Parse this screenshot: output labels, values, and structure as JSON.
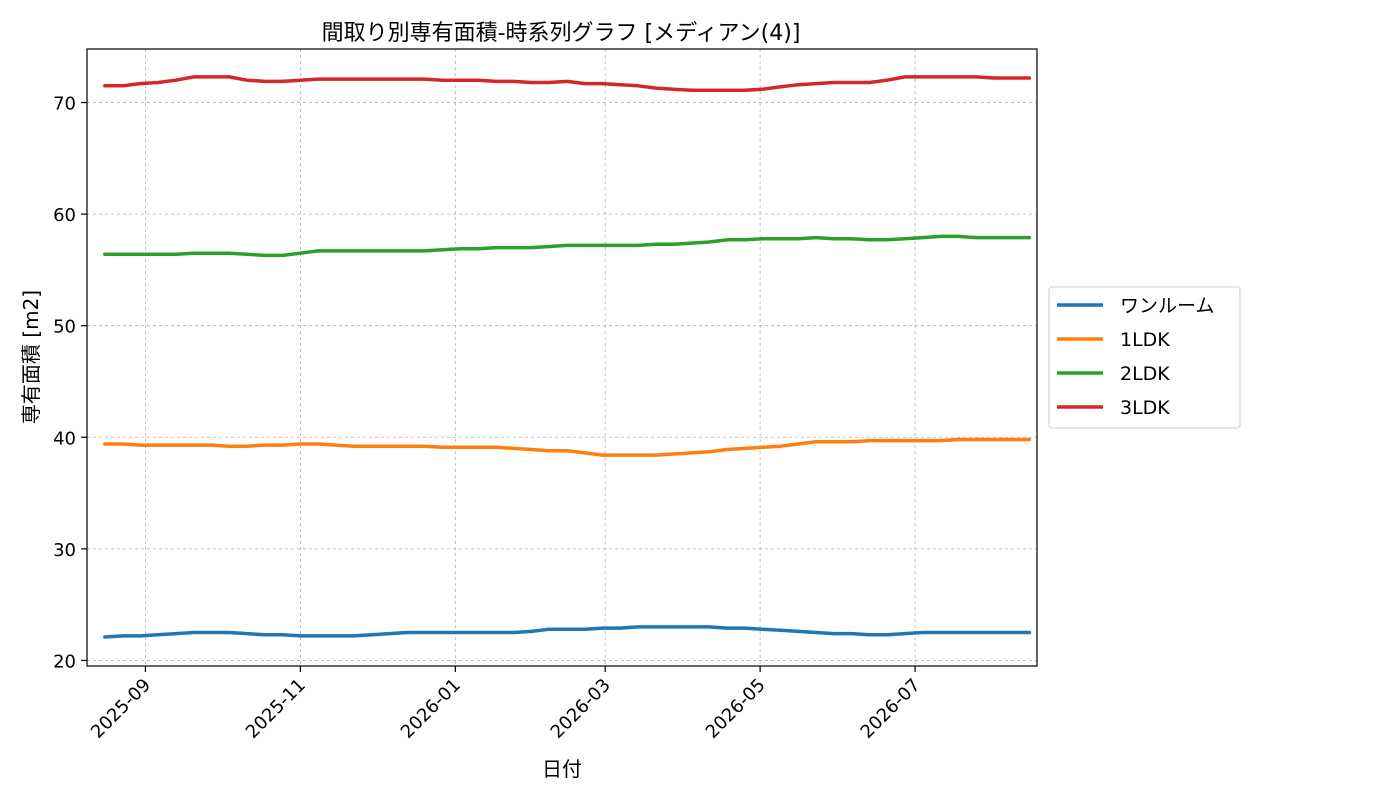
{
  "chart_data": {
    "type": "line",
    "title": "間取り別専有面積-時系列グラフ [メディアン(4)]",
    "xlabel": "日付",
    "ylabel": "専有面積 [m2]",
    "x_axis_type": "date",
    "xlim": [
      "2025-08-09",
      "2026-08-18"
    ],
    "ylim": [
      19.5,
      74.8
    ],
    "y_ticks": [
      20,
      30,
      40,
      50,
      60,
      70
    ],
    "x_ticks": [
      "2025-09-01",
      "2025-11-01",
      "2026-01-01",
      "2026-03-01",
      "2026-05-01",
      "2026-07-01"
    ],
    "x_tick_labels": [
      "2025-09",
      "2025-11",
      "2026-01",
      "2026-03",
      "2026-05",
      "2026-07"
    ],
    "grid": true,
    "legend_position": "center-right-outside",
    "x": [
      "2025-08-16",
      "2025-08-23",
      "2025-08-30",
      "2025-09-06",
      "2025-09-13",
      "2025-09-20",
      "2025-09-27",
      "2025-10-04",
      "2025-10-11",
      "2025-10-18",
      "2025-10-25",
      "2025-11-01",
      "2025-11-08",
      "2025-11-15",
      "2025-11-22",
      "2025-11-29",
      "2025-12-06",
      "2025-12-13",
      "2025-12-20",
      "2025-12-27",
      "2026-01-03",
      "2026-01-10",
      "2026-01-17",
      "2026-01-24",
      "2026-01-31",
      "2026-02-07",
      "2026-02-14",
      "2026-02-21",
      "2026-02-28",
      "2026-03-07",
      "2026-03-14",
      "2026-03-21",
      "2026-03-28",
      "2026-04-04",
      "2026-04-11",
      "2026-04-18",
      "2026-04-25",
      "2026-05-02",
      "2026-05-09",
      "2026-05-16",
      "2026-05-23",
      "2026-05-30",
      "2026-06-06",
      "2026-06-13",
      "2026-06-20",
      "2026-06-27",
      "2026-07-04",
      "2026-07-11",
      "2026-07-18",
      "2026-07-25",
      "2026-08-01",
      "2026-08-08",
      "2026-08-15"
    ],
    "series": [
      {
        "name": "ワンルーム",
        "color": "#1f77b4",
        "values": [
          22.1,
          22.2,
          22.2,
          22.3,
          22.4,
          22.5,
          22.5,
          22.5,
          22.4,
          22.3,
          22.3,
          22.2,
          22.2,
          22.2,
          22.2,
          22.3,
          22.4,
          22.5,
          22.5,
          22.5,
          22.5,
          22.5,
          22.5,
          22.5,
          22.6,
          22.8,
          22.8,
          22.8,
          22.9,
          22.9,
          23.0,
          23.0,
          23.0,
          23.0,
          23.0,
          22.9,
          22.9,
          22.8,
          22.7,
          22.6,
          22.5,
          22.4,
          22.4,
          22.3,
          22.3,
          22.4,
          22.5,
          22.5,
          22.5,
          22.5,
          22.5,
          22.5,
          22.5
        ]
      },
      {
        "name": "1LDK",
        "color": "#ff7f0e",
        "values": [
          39.4,
          39.4,
          39.3,
          39.3,
          39.3,
          39.3,
          39.3,
          39.2,
          39.2,
          39.3,
          39.3,
          39.4,
          39.4,
          39.3,
          39.2,
          39.2,
          39.2,
          39.2,
          39.2,
          39.1,
          39.1,
          39.1,
          39.1,
          39.0,
          38.9,
          38.8,
          38.8,
          38.6,
          38.4,
          38.4,
          38.4,
          38.4,
          38.5,
          38.6,
          38.7,
          38.9,
          39.0,
          39.1,
          39.2,
          39.4,
          39.6,
          39.6,
          39.6,
          39.7,
          39.7,
          39.7,
          39.7,
          39.7,
          39.8,
          39.8,
          39.8,
          39.8,
          39.8
        ]
      },
      {
        "name": "2LDK",
        "color": "#2ca02c",
        "values": [
          56.4,
          56.4,
          56.4,
          56.4,
          56.4,
          56.5,
          56.5,
          56.5,
          56.4,
          56.3,
          56.3,
          56.5,
          56.7,
          56.7,
          56.7,
          56.7,
          56.7,
          56.7,
          56.7,
          56.8,
          56.9,
          56.9,
          57.0,
          57.0,
          57.0,
          57.1,
          57.2,
          57.2,
          57.2,
          57.2,
          57.2,
          57.3,
          57.3,
          57.4,
          57.5,
          57.7,
          57.7,
          57.8,
          57.8,
          57.8,
          57.9,
          57.8,
          57.8,
          57.7,
          57.7,
          57.8,
          57.9,
          58.0,
          58.0,
          57.9,
          57.9,
          57.9,
          57.9
        ]
      },
      {
        "name": "3LDK",
        "color": "#d62728",
        "values": [
          71.5,
          71.5,
          71.7,
          71.8,
          72.0,
          72.3,
          72.3,
          72.3,
          72.0,
          71.9,
          71.9,
          72.0,
          72.1,
          72.1,
          72.1,
          72.1,
          72.1,
          72.1,
          72.1,
          72.0,
          72.0,
          72.0,
          71.9,
          71.9,
          71.8,
          71.8,
          71.9,
          71.7,
          71.7,
          71.6,
          71.5,
          71.3,
          71.2,
          71.1,
          71.1,
          71.1,
          71.1,
          71.2,
          71.4,
          71.6,
          71.7,
          71.8,
          71.8,
          71.8,
          72.0,
          72.3,
          72.3,
          72.3,
          72.3,
          72.3,
          72.2,
          72.2,
          72.2
        ]
      }
    ]
  }
}
